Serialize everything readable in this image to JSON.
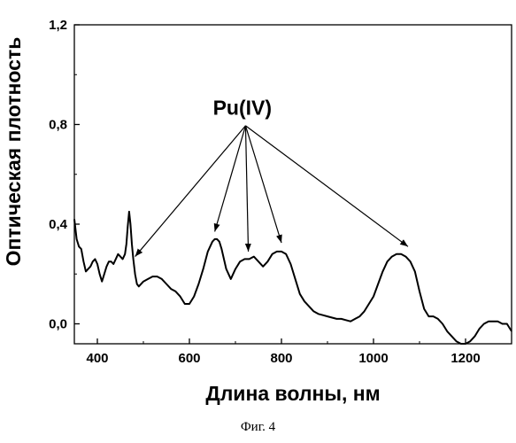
{
  "chart_data": {
    "type": "line",
    "title": "",
    "xlabel": "Длина волны, нм",
    "ylabel": "Оптическая плотность",
    "xlim": [
      350,
      1300
    ],
    "ylim": [
      -0.08,
      1.2
    ],
    "xticks": [
      {
        "value": 400,
        "label": "400"
      },
      {
        "value": 600,
        "label": "600"
      },
      {
        "value": 800,
        "label": "800"
      },
      {
        "value": 1000,
        "label": "1000"
      },
      {
        "value": 1200,
        "label": "1200"
      }
    ],
    "yticks": [
      {
        "value": 0.0,
        "label": "0,0"
      },
      {
        "value": 0.4,
        "label": "0,4"
      },
      {
        "value": 0.8,
        "label": "0,8"
      },
      {
        "value": 1.2,
        "label": "1,2"
      }
    ],
    "grid": false,
    "legend": "none",
    "line_color": "#000000",
    "series": [
      {
        "x": [
          350,
          355,
          360,
          365,
          370,
          375,
          380,
          385,
          390,
          395,
          400,
          405,
          410,
          415,
          420,
          425,
          430,
          435,
          440,
          445,
          450,
          455,
          460,
          463,
          466,
          469,
          472,
          475,
          478,
          482,
          486,
          490,
          500,
          510,
          520,
          530,
          540,
          550,
          560,
          570,
          580,
          590,
          600,
          610,
          620,
          630,
          640,
          650,
          655,
          660,
          665,
          670,
          680,
          690,
          700,
          710,
          720,
          730,
          740,
          750,
          760,
          770,
          780,
          790,
          800,
          810,
          820,
          830,
          840,
          850,
          860,
          870,
          880,
          890,
          900,
          910,
          920,
          930,
          940,
          950,
          960,
          970,
          980,
          990,
          1000,
          1010,
          1020,
          1030,
          1040,
          1050,
          1060,
          1070,
          1080,
          1090,
          1100,
          1110,
          1120,
          1130,
          1140,
          1150,
          1160,
          1170,
          1180,
          1190,
          1200,
          1210,
          1220,
          1230,
          1240,
          1250,
          1260,
          1270,
          1280,
          1290,
          1300
        ],
        "y": [
          0.42,
          0.34,
          0.31,
          0.3,
          0.25,
          0.21,
          0.22,
          0.23,
          0.25,
          0.26,
          0.24,
          0.2,
          0.17,
          0.2,
          0.23,
          0.25,
          0.25,
          0.24,
          0.26,
          0.28,
          0.27,
          0.26,
          0.28,
          0.32,
          0.39,
          0.45,
          0.4,
          0.32,
          0.26,
          0.2,
          0.16,
          0.15,
          0.17,
          0.18,
          0.19,
          0.19,
          0.18,
          0.16,
          0.14,
          0.13,
          0.11,
          0.08,
          0.08,
          0.11,
          0.16,
          0.22,
          0.29,
          0.33,
          0.34,
          0.34,
          0.33,
          0.3,
          0.22,
          0.18,
          0.22,
          0.25,
          0.26,
          0.26,
          0.27,
          0.25,
          0.23,
          0.25,
          0.28,
          0.29,
          0.29,
          0.28,
          0.24,
          0.18,
          0.12,
          0.09,
          0.07,
          0.05,
          0.04,
          0.035,
          0.03,
          0.025,
          0.02,
          0.02,
          0.015,
          0.01,
          0.02,
          0.03,
          0.05,
          0.08,
          0.11,
          0.16,
          0.21,
          0.25,
          0.27,
          0.28,
          0.28,
          0.27,
          0.25,
          0.21,
          0.13,
          0.06,
          0.03,
          0.03,
          0.02,
          0.0,
          -0.03,
          -0.05,
          -0.07,
          -0.08,
          -0.08,
          -0.07,
          -0.05,
          -0.02,
          0.0,
          0.01,
          0.01,
          0.01,
          0.0,
          0.0,
          -0.03
        ]
      }
    ],
    "annotations": [
      {
        "label": "Pu(IV)",
        "text_x": 715,
        "text_y": 0.84,
        "origin_x": 722,
        "origin_y": 0.795,
        "targets": [
          {
            "x": 482,
            "y": 0.27
          },
          {
            "x": 655,
            "y": 0.37
          },
          {
            "x": 728,
            "y": 0.29
          },
          {
            "x": 800,
            "y": 0.325
          },
          {
            "x": 1075,
            "y": 0.31
          }
        ]
      }
    ]
  },
  "caption": "Фиг. 4"
}
